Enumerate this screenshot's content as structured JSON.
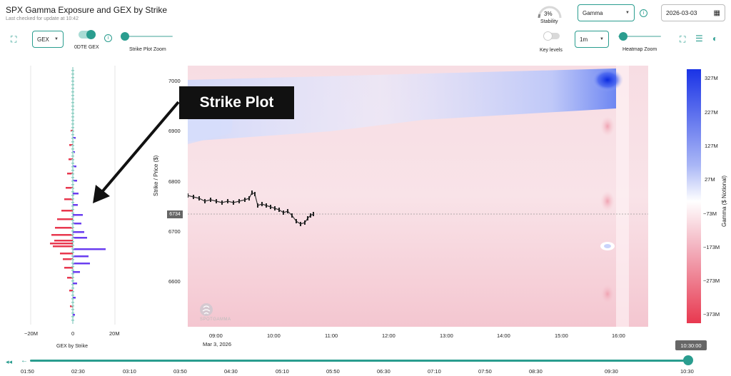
{
  "header": {
    "title": "SPX Gamma Exposure and GEX by Strike",
    "subtitle": "Last checked for update at 10:42"
  },
  "left_controls": {
    "gex_select": "GEX",
    "odte_label": "0DTE GEX",
    "odte_on": true,
    "strike_zoom_label": "Strike Plot Zoom"
  },
  "top_right": {
    "stability_value": "3%",
    "stability_label": "Stability",
    "metric_select": "Gamma",
    "date_value": "2026-03-03",
    "key_levels_label": "Key levels",
    "key_levels_on": false,
    "interval_select": "1m",
    "heatmap_zoom_label": "Heatmap Zoom"
  },
  "callout": {
    "text": "Strike Plot"
  },
  "strike_plot": {
    "x_ticks": [
      "−20M",
      "0",
      "20M"
    ],
    "xlabel": "GEX by Strike"
  },
  "heatmap": {
    "ylabel": "Strike / Price ($)",
    "y_ticks": [
      "7000",
      "6900",
      "6800",
      "6700",
      "6600"
    ],
    "x_ticks": [
      "09:00",
      "10:00",
      "11:00",
      "12:00",
      "13:00",
      "14:00",
      "15:00",
      "16:00"
    ],
    "date_label": "Mar 3, 2026",
    "price_label": "6734",
    "watermark": "SPOTGAMMA",
    "colorbar_label": "Gamma ($ Notional)",
    "colorbar_ticks": [
      "327M",
      "227M",
      "127M",
      "27M",
      "−73M",
      "−173M",
      "−273M",
      "−373M"
    ],
    "colors": {
      "positive": "#1a33e6",
      "neutral": "#ffffff",
      "negative": "#e8384f"
    }
  },
  "timeline": {
    "current": "10:30:00",
    "labels": [
      "01:50",
      "02:30",
      "03:10",
      "03:50",
      "04:30",
      "05:10",
      "05:50",
      "06:30",
      "07:10",
      "07:50",
      "08:30",
      "09:30",
      "10:30"
    ],
    "accent": "#2a9d8f"
  }
}
